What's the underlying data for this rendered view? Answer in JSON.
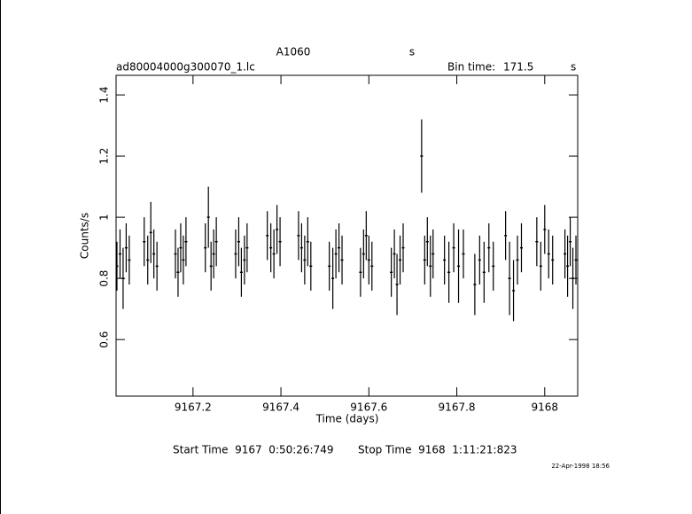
{
  "chart_data": {
    "type": "errorbar",
    "title": "A1060",
    "title_unit": "s",
    "file": "ad80004000g300070_1.lc",
    "bin_label": "Bin time:",
    "bin_value": "171.5",
    "bin_unit": "s",
    "xlabel": "Time (days)",
    "ylabel": "Counts/s",
    "start_label": "Start Time  9167  0:50:26:749",
    "stop_label": "Stop Time  9168  1:11:21:823",
    "timestamp": "22-Apr-1998 18:56",
    "color": "#000000",
    "xlim": [
      9167.025,
      9168.075
    ],
    "ylim": [
      0.415,
      1.464
    ],
    "xticks": [
      {
        "value": 9167.2,
        "label": "9167.2"
      },
      {
        "value": 9167.4,
        "label": "9167.4"
      },
      {
        "value": 9167.6,
        "label": "9167.6"
      },
      {
        "value": 9167.8,
        "label": "9167.8"
      },
      9168
    ],
    "yticks": [
      0.6,
      0.8,
      1,
      1.2,
      1.4
    ],
    "x": [
      9167.027,
      9167.034,
      9167.041,
      9167.048,
      9167.055,
      9167.089,
      9167.097,
      9167.104,
      9167.111,
      9167.118,
      9167.16,
      9167.166,
      9167.172,
      9167.178,
      9167.184,
      9167.228,
      9167.235,
      9167.241,
      9167.247,
      9167.253,
      9167.297,
      9167.304,
      9167.31,
      9167.317,
      9167.323,
      9167.369,
      9167.377,
      9167.384,
      9167.391,
      9167.398,
      9167.44,
      9167.447,
      9167.454,
      9167.461,
      9167.468,
      9167.51,
      9167.518,
      9167.525,
      9167.532,
      9167.539,
      9167.581,
      9167.588,
      9167.594,
      9167.6,
      9167.607,
      9167.651,
      9167.658,
      9167.664,
      9167.671,
      9167.678,
      9167.72,
      9167.727,
      9167.733,
      9167.74,
      9167.746,
      9167.772,
      9167.782,
      9167.793,
      9167.804,
      9167.815,
      9167.841,
      9167.852,
      9167.862,
      9167.873,
      9167.883,
      9167.911,
      9167.92,
      9167.929,
      9167.938,
      9167.947,
      9167.982,
      9167.991,
      9168.0,
      9168.009,
      9168.018,
      9168.046,
      9168.052,
      9168.058,
      9168.064,
      9168.071
    ],
    "values": [
      0.84,
      0.88,
      0.8,
      0.9,
      0.86,
      0.92,
      0.86,
      0.95,
      0.88,
      0.84,
      0.88,
      0.82,
      0.9,
      0.86,
      0.92,
      0.9,
      1.0,
      0.84,
      0.88,
      0.92,
      0.88,
      0.92,
      0.82,
      0.86,
      0.9,
      0.94,
      0.9,
      0.88,
      0.96,
      0.92,
      0.94,
      0.9,
      0.86,
      0.92,
      0.84,
      0.84,
      0.8,
      0.88,
      0.9,
      0.86,
      0.82,
      0.88,
      0.94,
      0.86,
      0.84,
      0.82,
      0.88,
      0.78,
      0.86,
      0.9,
      1.2,
      0.86,
      0.92,
      0.84,
      0.88,
      0.86,
      0.82,
      0.9,
      0.84,
      0.88,
      0.78,
      0.86,
      0.82,
      0.9,
      0.84,
      0.94,
      0.8,
      0.76,
      0.86,
      0.9,
      0.92,
      0.84,
      0.96,
      0.88,
      0.86,
      0.88,
      0.84,
      0.92,
      0.8,
      0.86
    ],
    "errors": [
      0.08,
      0.08,
      0.1,
      0.08,
      0.08,
      0.08,
      0.08,
      0.1,
      0.08,
      0.08,
      0.08,
      0.08,
      0.08,
      0.08,
      0.08,
      0.08,
      0.1,
      0.08,
      0.08,
      0.08,
      0.08,
      0.08,
      0.08,
      0.08,
      0.08,
      0.08,
      0.08,
      0.08,
      0.08,
      0.08,
      0.08,
      0.08,
      0.08,
      0.08,
      0.08,
      0.08,
      0.1,
      0.08,
      0.08,
      0.08,
      0.08,
      0.08,
      0.08,
      0.08,
      0.08,
      0.08,
      0.08,
      0.1,
      0.08,
      0.08,
      0.12,
      0.08,
      0.08,
      0.1,
      0.08,
      0.08,
      0.1,
      0.08,
      0.12,
      0.08,
      0.1,
      0.08,
      0.1,
      0.08,
      0.08,
      0.08,
      0.12,
      0.1,
      0.08,
      0.08,
      0.08,
      0.08,
      0.08,
      0.08,
      0.08,
      0.08,
      0.1,
      0.08,
      0.1,
      0.08
    ]
  }
}
